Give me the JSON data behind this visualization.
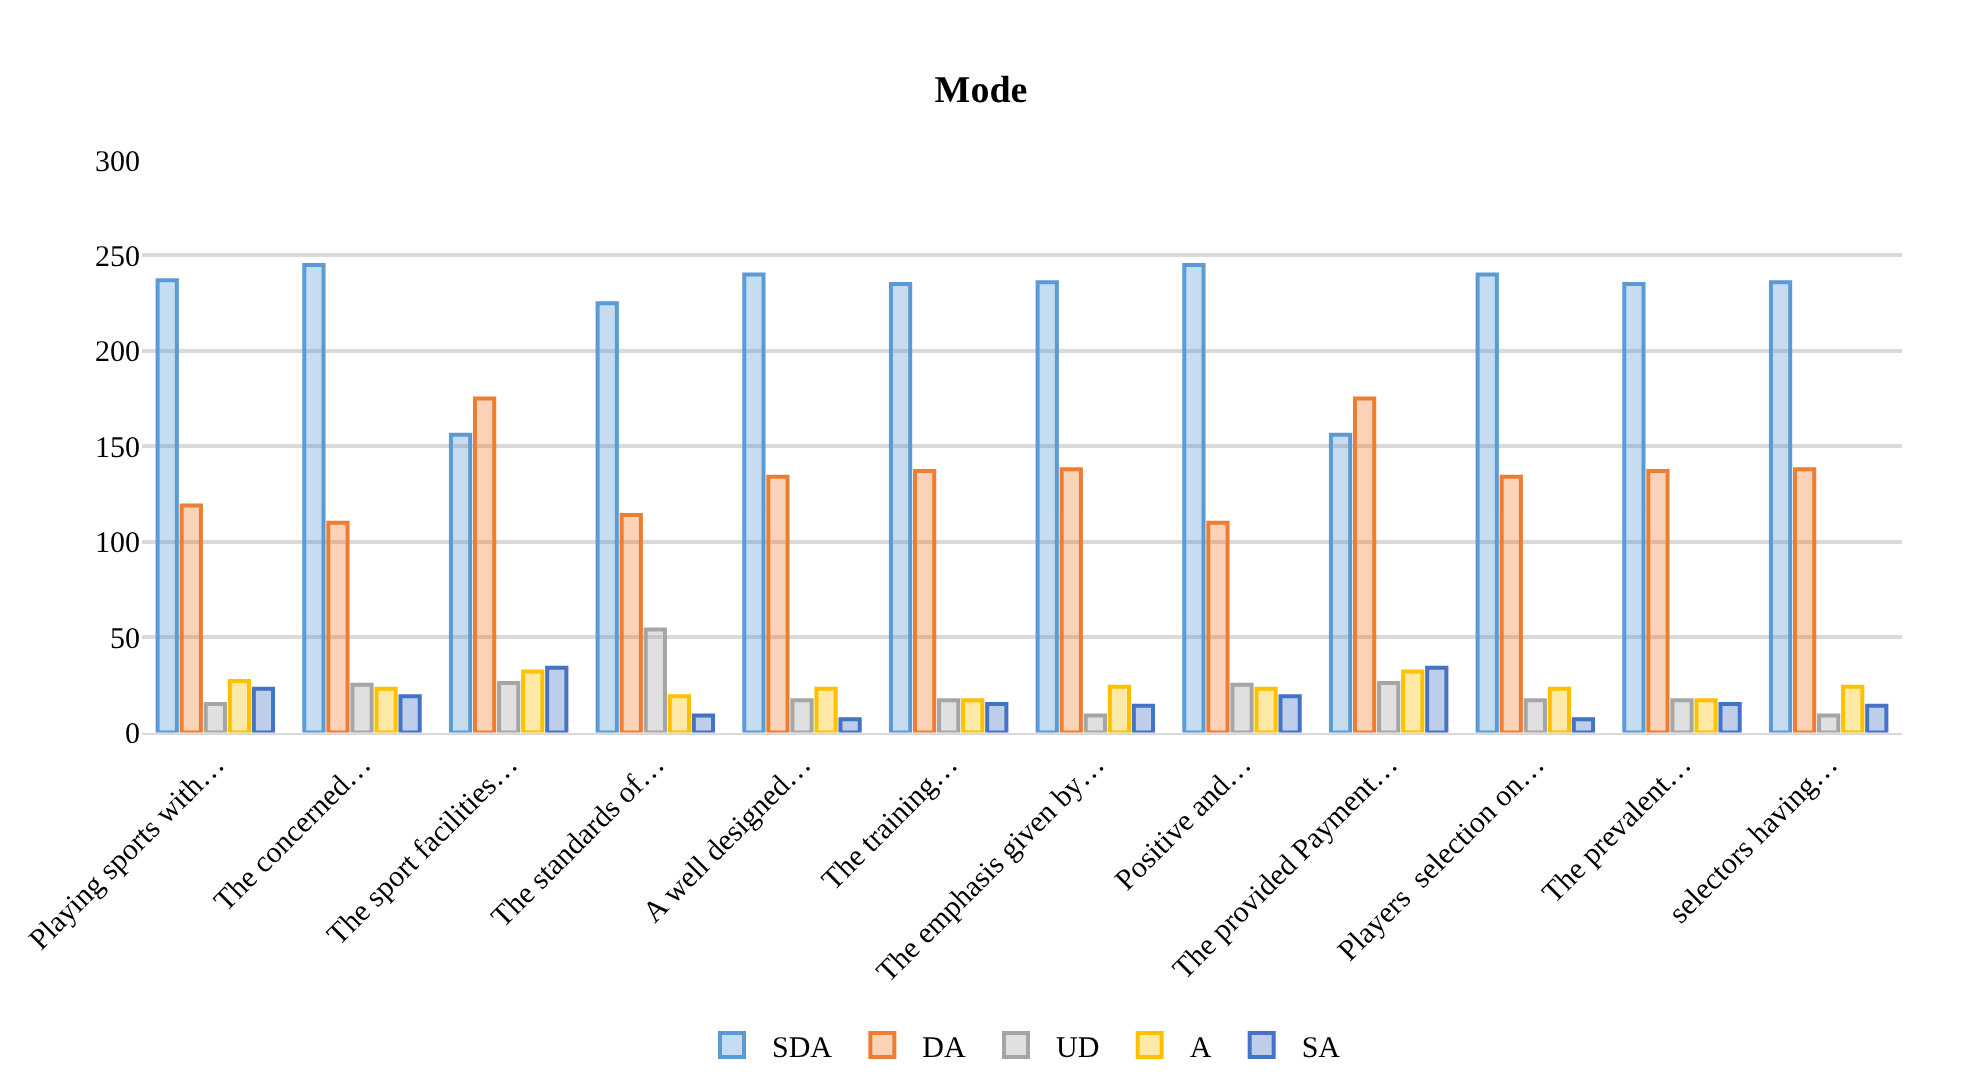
{
  "chart_data": {
    "type": "bar",
    "title": "Mode",
    "categories": [
      "Playing sports with…",
      "The concerned…",
      "The sport facilities…",
      "The standards of…",
      "A well designed…",
      "The training…",
      "The emphasis given by…",
      "Positive and…",
      "The provided Payment…",
      "Players  selection on…",
      "The prevalent…",
      "selectors having…"
    ],
    "series": [
      {
        "name": "SDA",
        "color": "#5b9bd5",
        "values": [
          237,
          245,
          156,
          225,
          240,
          235,
          236,
          245,
          156,
          240,
          235,
          236
        ]
      },
      {
        "name": "DA",
        "color": "#ed7d31",
        "values": [
          119,
          110,
          175,
          114,
          134,
          137,
          138,
          110,
          175,
          134,
          137,
          138
        ]
      },
      {
        "name": "UD",
        "color": "#a5a5a5",
        "values": [
          15,
          25,
          26,
          54,
          17,
          17,
          9,
          25,
          26,
          17,
          17,
          9
        ]
      },
      {
        "name": "A",
        "color": "#ffc000",
        "values": [
          27,
          23,
          32,
          19,
          23,
          17,
          24,
          23,
          32,
          23,
          17,
          24
        ]
      },
      {
        "name": "SA",
        "color": "#4472c4",
        "values": [
          23,
          19,
          34,
          9,
          7,
          15,
          14,
          19,
          34,
          7,
          15,
          14
        ]
      }
    ],
    "ylim": [
      0,
      300
    ],
    "yticks": [
      0,
      50,
      100,
      150,
      200,
      250,
      300
    ],
    "grid": "y",
    "legend": "bottom"
  }
}
